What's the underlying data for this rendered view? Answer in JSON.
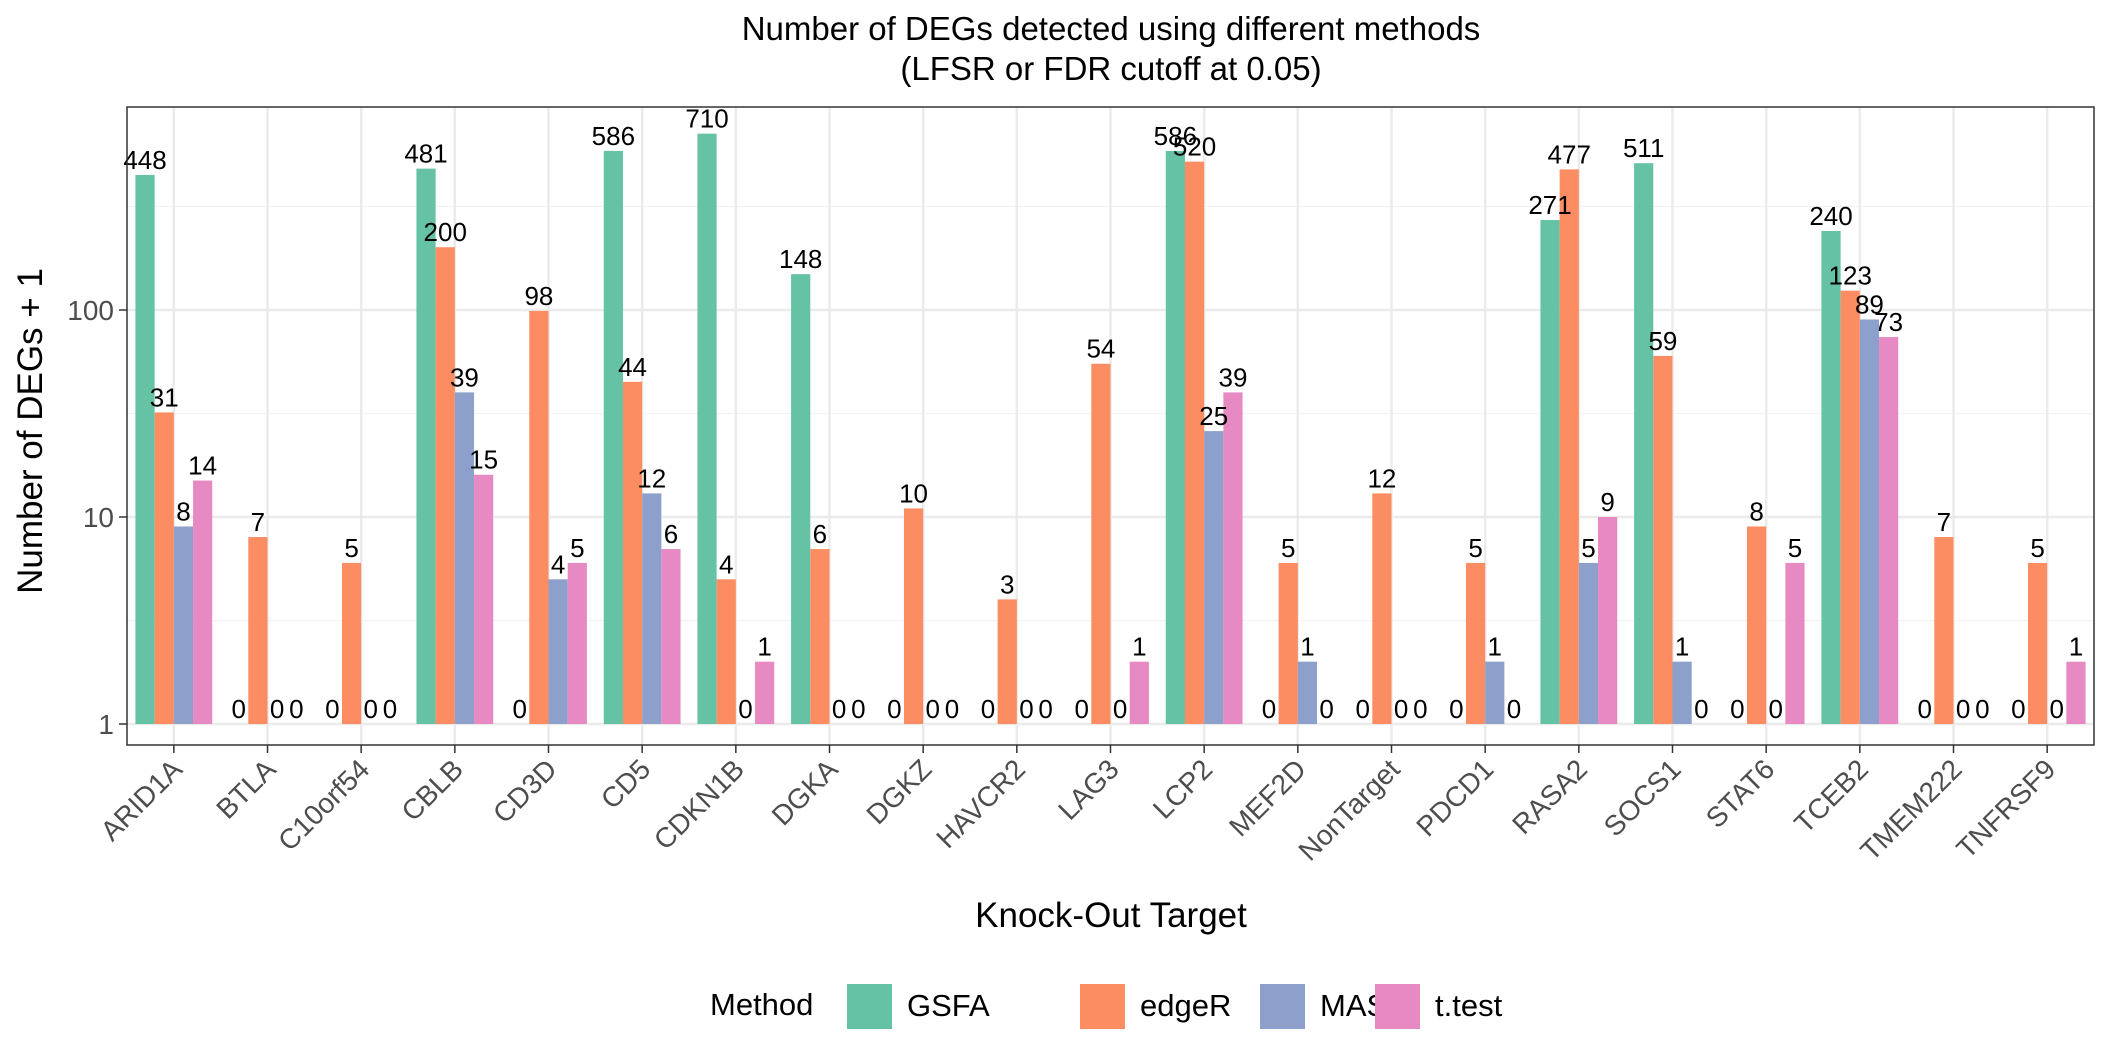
{
  "chart_data": {
    "type": "bar",
    "title": "Number of DEGs detected using different methods",
    "subtitle": "(LFSR or FDR cutoff at 0.05)",
    "xlabel": "Knock-Out Target",
    "ylabel": "Number of DEGs + 1",
    "y_scale": "log10",
    "y_ticks": [
      1,
      10,
      100
    ],
    "grid": true,
    "legend_position": "bottom",
    "legend_title": "Method",
    "categories": [
      "ARID1A",
      "BTLA",
      "C10orf54",
      "CBLB",
      "CD3D",
      "CD5",
      "CDKN1B",
      "DGKA",
      "DGKZ",
      "HAVCR2",
      "LAG3",
      "LCP2",
      "MEF2D",
      "NonTarget",
      "PDCD1",
      "RASA2",
      "SOCS1",
      "STAT6",
      "TCEB2",
      "TMEM222",
      "TNFRSF9"
    ],
    "series": [
      {
        "name": "GSFA",
        "color": "#66c2a5",
        "values": [
          448,
          0,
          0,
          481,
          0,
          586,
          710,
          148,
          0,
          0,
          0,
          586,
          0,
          0,
          0,
          271,
          511,
          0,
          240,
          0,
          0
        ]
      },
      {
        "name": "edgeR",
        "color": "#fc8d62",
        "values": [
          31,
          7,
          5,
          200,
          98,
          44,
          4,
          6,
          10,
          3,
          54,
          520,
          5,
          12,
          5,
          477,
          59,
          8,
          123,
          7,
          5
        ]
      },
      {
        "name": "MAST",
        "color": "#8da0cb",
        "values": [
          8,
          0,
          0,
          39,
          4,
          12,
          0,
          0,
          0,
          0,
          0,
          25,
          1,
          0,
          1,
          5,
          1,
          0,
          89,
          0,
          0
        ]
      },
      {
        "name": "t.test",
        "color": "#e78ac3",
        "values": [
          14,
          0,
          0,
          15,
          5,
          6,
          1,
          0,
          0,
          0,
          1,
          39,
          0,
          0,
          0,
          9,
          0,
          5,
          73,
          0,
          1
        ]
      }
    ]
  }
}
